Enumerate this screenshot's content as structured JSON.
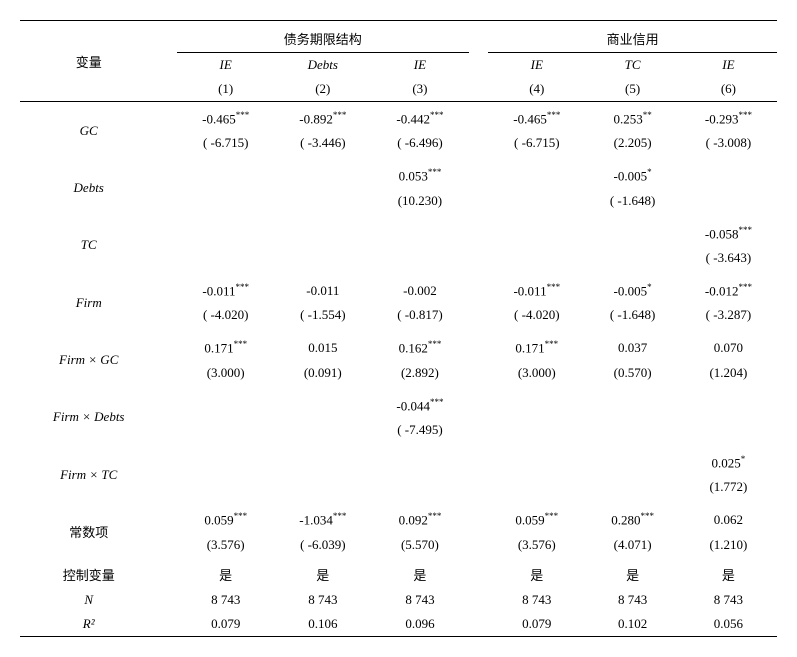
{
  "header": {
    "varLabel": "变量",
    "group1": "债务期限结构",
    "group2": "商业信用",
    "cols": [
      {
        "var": "IE",
        "num": "(1)"
      },
      {
        "var": "Debts",
        "num": "(2)"
      },
      {
        "var": "IE",
        "num": "(3)"
      },
      {
        "var": "IE",
        "num": "(4)"
      },
      {
        "var": "TC",
        "num": "(5)"
      },
      {
        "var": "IE",
        "num": "(6)"
      }
    ]
  },
  "rows": [
    {
      "label": "GC",
      "italic": true,
      "cells": [
        {
          "v": "-0.465",
          "s": "***",
          "t": "( -6.715)"
        },
        {
          "v": "-0.892",
          "s": "***",
          "t": "( -3.446)"
        },
        {
          "v": "-0.442",
          "s": "***",
          "t": "( -6.496)"
        },
        {
          "v": "-0.465",
          "s": "***",
          "t": "( -6.715)"
        },
        {
          "v": "0.253",
          "s": "**",
          "t": "(2.205)"
        },
        {
          "v": "-0.293",
          "s": "***",
          "t": "( -3.008)"
        }
      ]
    },
    {
      "label": "Debts",
      "italic": true,
      "cells": [
        {
          "v": "",
          "s": "",
          "t": ""
        },
        {
          "v": "",
          "s": "",
          "t": ""
        },
        {
          "v": "0.053",
          "s": "***",
          "t": "(10.230)"
        },
        {
          "v": "",
          "s": "",
          "t": ""
        },
        {
          "v": "-0.005",
          "s": "*",
          "t": "( -1.648)"
        },
        {
          "v": "",
          "s": "",
          "t": ""
        }
      ]
    },
    {
      "label": "TC",
      "italic": true,
      "cells": [
        {
          "v": "",
          "s": "",
          "t": ""
        },
        {
          "v": "",
          "s": "",
          "t": ""
        },
        {
          "v": "",
          "s": "",
          "t": ""
        },
        {
          "v": "",
          "s": "",
          "t": ""
        },
        {
          "v": "",
          "s": "",
          "t": ""
        },
        {
          "v": "-0.058",
          "s": "***",
          "t": "( -3.643)"
        }
      ]
    },
    {
      "label": "Firm",
      "italic": true,
      "cells": [
        {
          "v": "-0.011",
          "s": "***",
          "t": "( -4.020)"
        },
        {
          "v": "-0.011",
          "s": "",
          "t": "( -1.554)"
        },
        {
          "v": "-0.002",
          "s": "",
          "t": "( -0.817)"
        },
        {
          "v": "-0.011",
          "s": "***",
          "t": "( -4.020)"
        },
        {
          "v": "-0.005",
          "s": "*",
          "t": "( -1.648)"
        },
        {
          "v": "-0.012",
          "s": "***",
          "t": "( -3.287)"
        }
      ]
    },
    {
      "label": "Firm × GC",
      "italic": true,
      "cells": [
        {
          "v": "0.171",
          "s": "***",
          "t": "(3.000)"
        },
        {
          "v": "0.015",
          "s": "",
          "t": "(0.091)"
        },
        {
          "v": "0.162",
          "s": "***",
          "t": "(2.892)"
        },
        {
          "v": "0.171",
          "s": "***",
          "t": "(3.000)"
        },
        {
          "v": "0.037",
          "s": "",
          "t": "(0.570)"
        },
        {
          "v": "0.070",
          "s": "",
          "t": "(1.204)"
        }
      ]
    },
    {
      "label": "Firm × Debts",
      "italic": true,
      "cells": [
        {
          "v": "",
          "s": "",
          "t": ""
        },
        {
          "v": "",
          "s": "",
          "t": ""
        },
        {
          "v": "-0.044",
          "s": "***",
          "t": "( -7.495)"
        },
        {
          "v": "",
          "s": "",
          "t": ""
        },
        {
          "v": "",
          "s": "",
          "t": ""
        },
        {
          "v": "",
          "s": "",
          "t": ""
        }
      ]
    },
    {
      "label": "Firm × TC",
      "italic": true,
      "cells": [
        {
          "v": "",
          "s": "",
          "t": ""
        },
        {
          "v": "",
          "s": "",
          "t": ""
        },
        {
          "v": "",
          "s": "",
          "t": ""
        },
        {
          "v": "",
          "s": "",
          "t": ""
        },
        {
          "v": "",
          "s": "",
          "t": ""
        },
        {
          "v": "0.025",
          "s": "*",
          "t": "(1.772)"
        }
      ]
    },
    {
      "label": "常数项",
      "italic": false,
      "cells": [
        {
          "v": "0.059",
          "s": "***",
          "t": "(3.576)"
        },
        {
          "v": "-1.034",
          "s": "***",
          "t": "( -6.039)"
        },
        {
          "v": "0.092",
          "s": "***",
          "t": "(5.570)"
        },
        {
          "v": "0.059",
          "s": "***",
          "t": "(3.576)"
        },
        {
          "v": "0.280",
          "s": "***",
          "t": "(4.071)"
        },
        {
          "v": "0.062",
          "s": "",
          "t": "(1.210)"
        }
      ]
    }
  ],
  "singleRows": [
    {
      "label": "控制变量",
      "italic": false,
      "cells": [
        "是",
        "是",
        "是",
        "是",
        "是",
        "是"
      ]
    },
    {
      "label": "N",
      "italic": true,
      "cells": [
        "8 743",
        "8 743",
        "8 743",
        "8 743",
        "8 743",
        "8 743"
      ]
    },
    {
      "label": "R²",
      "italic": true,
      "cells": [
        "0.079",
        "0.106",
        "0.096",
        "0.079",
        "0.102",
        "0.056"
      ]
    }
  ]
}
